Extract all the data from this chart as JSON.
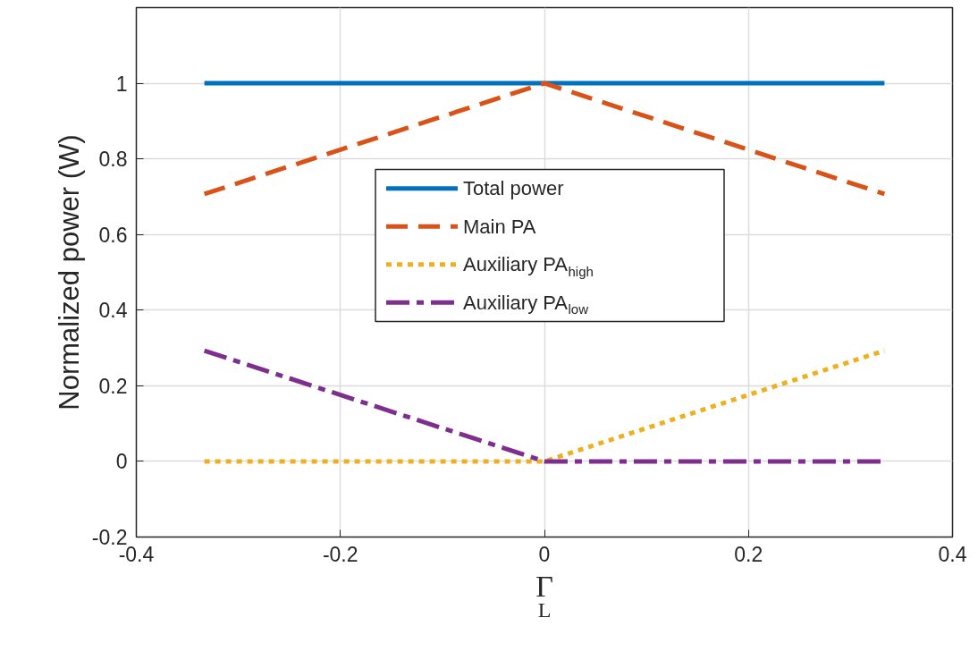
{
  "chart_data": {
    "type": "line",
    "xlabel": "Γ$_{L}$",
    "ylabel": "Normalized power (W)",
    "x": [
      -0.3333,
      0,
      0.3333
    ],
    "series": [
      {
        "name": "Total power",
        "color": "#0072bd",
        "values": [
          1,
          1,
          1
        ],
        "line_style": "solid"
      },
      {
        "name": "Main PA",
        "color": "#d95319",
        "values": [
          0.707,
          1,
          0.707
        ],
        "line_style": "dashed"
      },
      {
        "name": "Auxiliary PA$_{high}$",
        "color": "#edb120",
        "values": [
          0,
          0,
          0.293
        ],
        "line_style": "dotted"
      },
      {
        "name": "Auxiliary PA$_{low}$",
        "color": "#7e2f8e",
        "values": [
          0.293,
          0,
          0
        ],
        "line_style": "dashdot"
      }
    ],
    "xlim": [
      -0.4,
      0.4
    ],
    "xticks": [
      -0.4,
      -0.2,
      0,
      0.2,
      0.4
    ],
    "ylim": [
      -0.2,
      1.2
    ],
    "yticks": [
      -0.2,
      0,
      0.2,
      0.4,
      0.6,
      0.8,
      1
    ],
    "grid": true,
    "legend": "center",
    "marker": "none"
  }
}
